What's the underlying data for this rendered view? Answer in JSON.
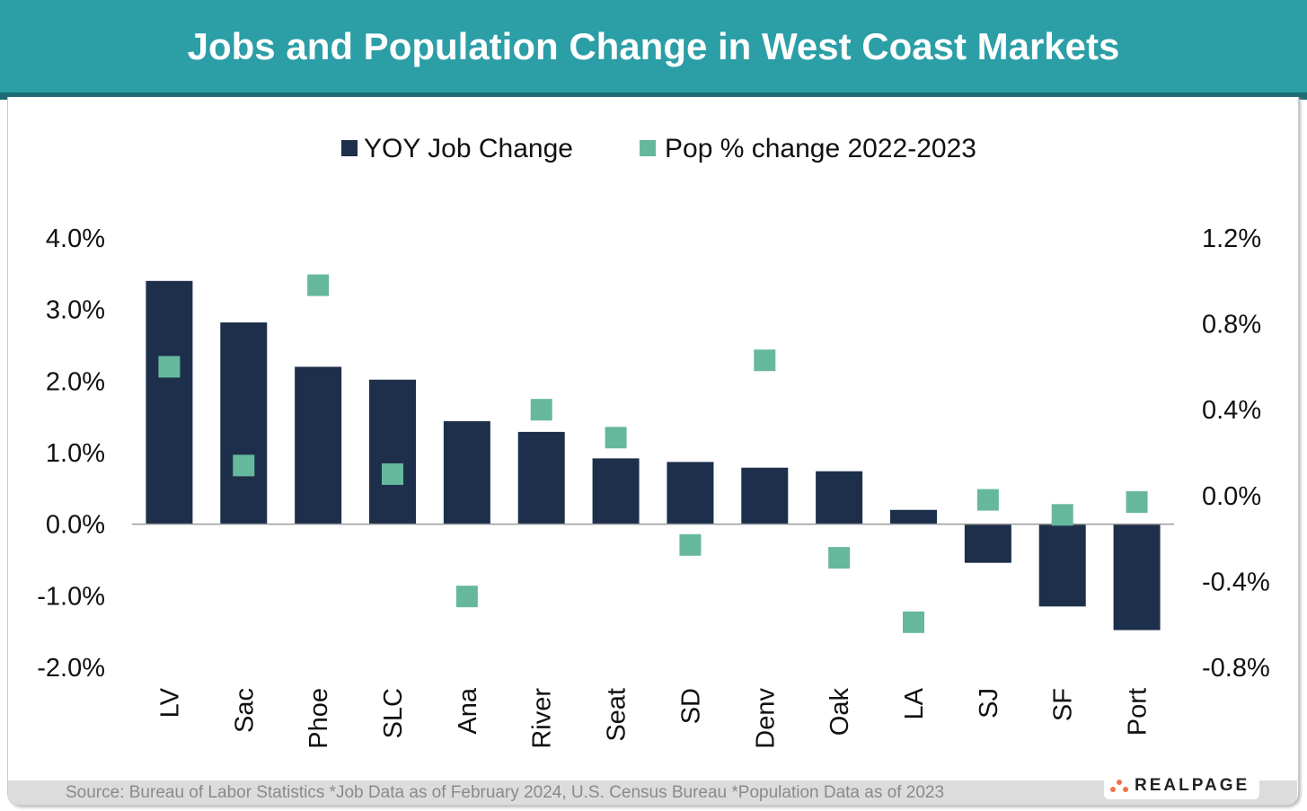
{
  "title": "Jobs and Population Change in West Coast Markets",
  "source": "Source: Bureau of Labor Statistics *Job Data as of February 2024, U.S. Census Bureau *Population Data as of 2023",
  "logo_text": "REALPAGE",
  "colors": {
    "header": "#2b9ea6",
    "bar": "#1d2f4b",
    "marker": "#66b89c",
    "logo_dots": "#ef7250"
  },
  "chart_data": {
    "type": "bar+scatter",
    "title": "Jobs and Population Change in West Coast Markets",
    "categories": [
      "LV",
      "Sac",
      "Phoe",
      "SLC",
      "Ana",
      "River",
      "Seat",
      "SD",
      "Denv",
      "Oak",
      "LA",
      "SJ",
      "SF",
      "Port"
    ],
    "series": [
      {
        "name": "YOY Job Change",
        "type": "bar",
        "axis": "left",
        "values": [
          3.4,
          2.82,
          2.2,
          2.02,
          1.44,
          1.29,
          0.92,
          0.87,
          0.79,
          0.74,
          0.2,
          -0.54,
          -1.15,
          -1.48
        ]
      },
      {
        "name": "Pop % change 2022-2023",
        "type": "scatter",
        "axis": "right",
        "values": [
          0.6,
          0.14,
          0.98,
          0.1,
          -0.47,
          0.4,
          0.27,
          -0.23,
          0.63,
          -0.29,
          -0.59,
          -0.02,
          -0.09,
          -0.03
        ]
      }
    ],
    "left_axis": {
      "ylim": [
        -2.0,
        4.0
      ],
      "ticks": [
        "4.0%",
        "3.0%",
        "2.0%",
        "1.0%",
        "0.0%",
        "-1.0%",
        "-2.0%"
      ],
      "tick_values": [
        4,
        3,
        2,
        1,
        0,
        -1,
        -2
      ]
    },
    "right_axis": {
      "ylim": [
        -0.8,
        1.2
      ],
      "ticks": [
        "1.2%",
        "0.8%",
        "0.4%",
        "0.0%",
        "-0.4%",
        "-0.8%"
      ],
      "tick_values": [
        1.2,
        0.8,
        0.4,
        0,
        -0.4,
        -0.8
      ]
    },
    "legend_position": "top",
    "grid": false
  }
}
